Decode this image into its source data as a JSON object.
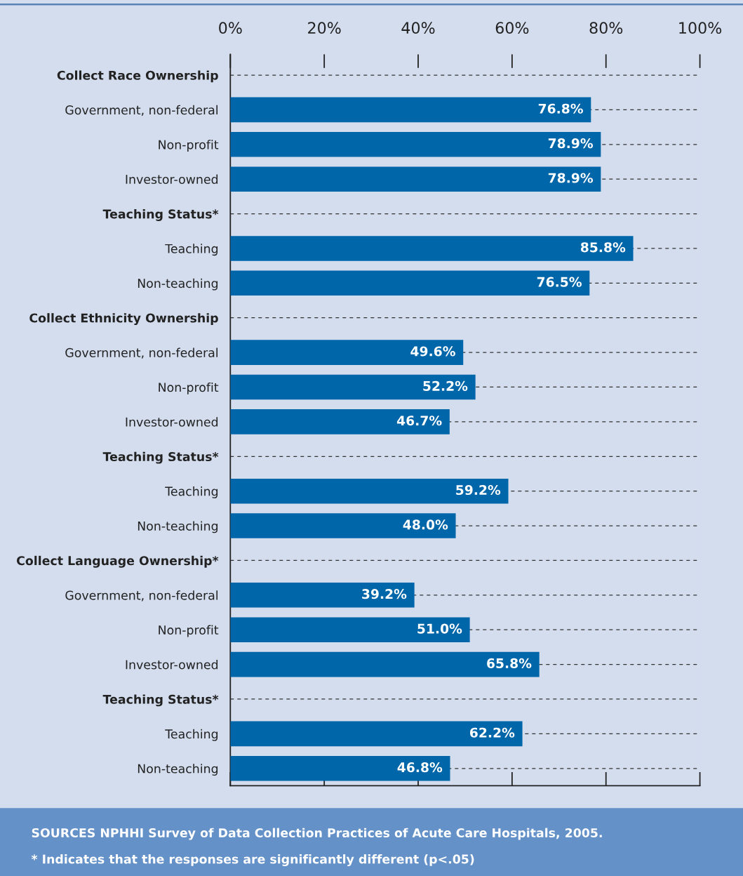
{
  "chart_data": {
    "type": "bar",
    "orientation": "horizontal",
    "categories": [
      "Collect Race Ownership",
      "Government, non-federal",
      "Non-profit",
      "Investor-owned",
      "Teaching Status*",
      "Teaching",
      "Non-teaching",
      "Collect Ethnicity Ownership",
      "Government, non-federal",
      "Non-profit",
      "Investor-owned",
      "Teaching Status*",
      "Teaching",
      "Non-teaching",
      "Collect Language Ownership*",
      "Government, non-federal",
      "Non-profit",
      "Investor-owned",
      "Teaching Status*",
      "Teaching",
      "Non-teaching"
    ],
    "values": [
      null,
      76.8,
      78.9,
      78.9,
      null,
      85.8,
      76.5,
      null,
      49.6,
      52.2,
      46.7,
      null,
      59.2,
      48.0,
      null,
      39.2,
      51.0,
      65.8,
      null,
      62.2,
      46.8
    ],
    "value_labels": [
      null,
      "76.8%",
      "78.9%",
      "78.9%",
      null,
      "85.8%",
      "76.5%",
      null,
      "49.6%",
      "52.2%",
      "46.7%",
      null,
      "59.2%",
      "48.0%",
      null,
      "39.2%",
      "51.0%",
      "65.8%",
      null,
      "62.2%",
      "46.8%"
    ],
    "color": "#0066aa",
    "xlim": [
      0,
      100
    ],
    "xticks": [
      {
        "value": 0,
        "label": "0%"
      },
      {
        "value": 20,
        "label": "20%"
      },
      {
        "value": 40,
        "label": "40%"
      },
      {
        "value": 60,
        "label": "60%"
      },
      {
        "value": 80,
        "label": "80%"
      },
      {
        "value": 100,
        "label": "100%"
      }
    ],
    "grid": "y",
    "line_style": "dashed",
    "annotations": [
      "SOURCES NPHHI Survey of Data Collection Practices of Acute Care Hospitals, 2005.",
      "* Indicates that the responses are significantly different (p<.05)"
    ]
  }
}
